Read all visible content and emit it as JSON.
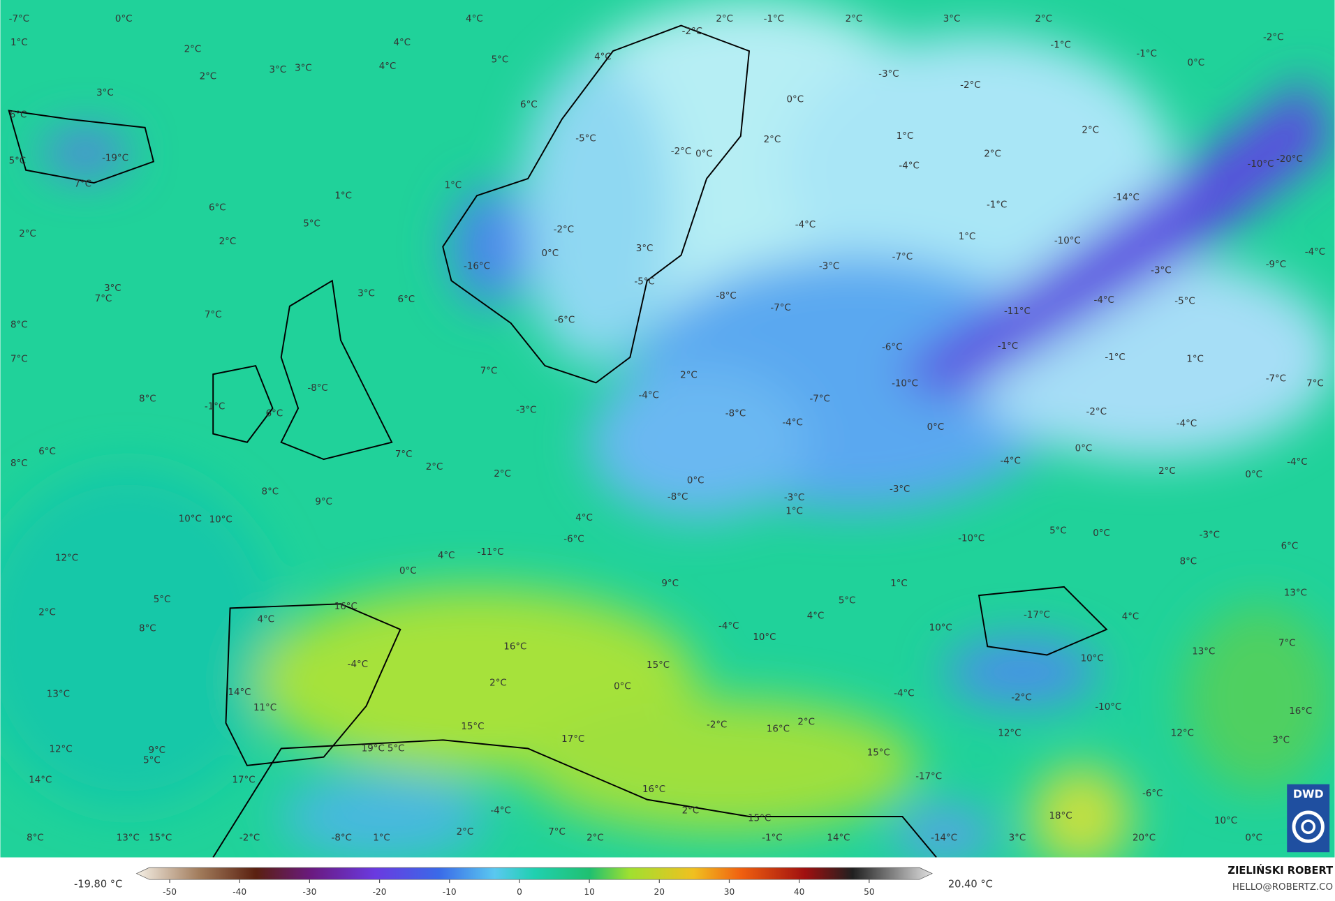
{
  "map": {
    "temperature_labels": [
      "-7°C",
      "0°C",
      "1°C",
      "2°C",
      "3°C",
      "3°C",
      "4°C",
      "4°C",
      "4°C",
      "5°C",
      "6°C",
      "3°C",
      "2°C",
      "-19°C",
      "5°C",
      "7°C",
      "1°C",
      "1°C",
      "6°C",
      "5°C",
      "2°C",
      "2°C",
      "-16°C",
      "3°C",
      "7°C",
      "3°C",
      "6°C",
      "7°C",
      "8°C",
      "7°C",
      "8°C",
      "6°C",
      "8°C",
      "6°C",
      "-8°C",
      "7°C",
      "2°C",
      "8°C",
      "9°C",
      "10°C",
      "10°C",
      "12°C",
      "2°C",
      "5°C",
      "8°C",
      "13°C",
      "12°C",
      "14°C",
      "8°C",
      "13°C",
      "15°C",
      "17°C",
      "9°C",
      "5°C",
      "14°C",
      "11°C",
      "4°C",
      "16°C",
      "-4°C",
      "0°C",
      "4°C",
      "-11°C",
      "-6°C",
      "4°C",
      "2°C",
      "-8°C",
      "0°C",
      "-3°C",
      "-4°C",
      "2°C",
      "7°C",
      "-6°C",
      "-5°C",
      "3°C",
      "0°C",
      "-2°C",
      "-5°C",
      "-2°C",
      "0°C",
      "2°C",
      "0°C",
      "-4°C",
      "-3°C",
      "-7°C",
      "-8°C",
      "-7°C",
      "-4°C",
      "-8°C",
      "-3°C",
      "1°C",
      "-10°C",
      "-6°C",
      "-7°C",
      "-4°C",
      "1°C",
      "-3°C",
      "-2°C",
      "2°C",
      "-1°C",
      "1°C",
      "-10°C",
      "-14°C",
      "-10°C",
      "-20°C",
      "-9°C",
      "-4°C",
      "-3°C",
      "-5°C",
      "-4°C",
      "-11°C",
      "-1°C",
      "-1°C",
      "1°C",
      "-7°C",
      "7°C",
      "-2°C",
      "-4°C",
      "0°C",
      "0°C",
      "-4°C",
      "-3°C",
      "2°C",
      "0°C",
      "-4°C",
      "-10°C",
      "5°C",
      "0°C",
      "-3°C",
      "6°C",
      "8°C",
      "13°C",
      "4°C",
      "-17°C",
      "10°C",
      "5°C",
      "4°C",
      "1°C",
      "-4°C",
      "10°C",
      "9°C",
      "16°C",
      "15°C",
      "2°C",
      "0°C",
      "15°C",
      "17°C",
      "16°C",
      "-2°C",
      "16°C",
      "2°C",
      "-4°C",
      "-2°C",
      "10°C",
      "13°C",
      "7°C",
      "-10°C",
      "16°C",
      "12°C",
      "3°C",
      "12°C",
      "15°C",
      "-17°C",
      "-6°C",
      "18°C",
      "10°C",
      "20°C",
      "0°C",
      "3°C",
      "-14°C",
      "-1°C",
      "14°C",
      "15°C",
      "2°C",
      "-4°C",
      "7°C",
      "2°C",
      "2°C",
      "1°C",
      "-8°C",
      "-2°C",
      "19°C",
      "5°C",
      "2°C",
      "-1°C",
      "2°C",
      "3°C",
      "2°C",
      "-1°C",
      "-1°C",
      "0°C",
      "-2°C",
      "2°C",
      "-2°C",
      "4°C",
      "-1°C",
      "6°C"
    ],
    "colorbar": {
      "min_label": "-19.80 °C",
      "max_label": "20.40 °C",
      "ticks": [
        -50,
        -40,
        -30,
        -20,
        -10,
        0,
        10,
        20,
        30,
        40,
        50
      ]
    },
    "author": "ZIELIŃSKI ROBERT",
    "contact": "HELLO@ROBERTZ.CO",
    "logo": "DWD"
  }
}
